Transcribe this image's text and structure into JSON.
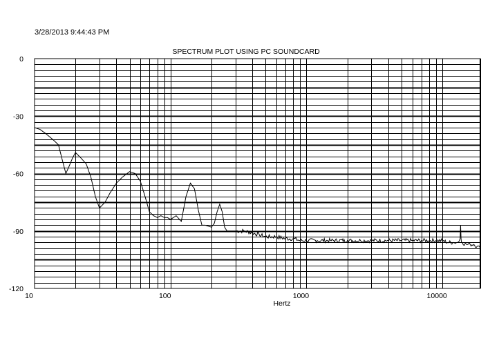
{
  "header": {
    "timestamp": "3/28/2013 9:44:43 PM"
  },
  "chart_data": {
    "type": "line",
    "title": "SPECTRUM PLOT USING PC SOUNDCARD",
    "xlabel": "Hertz",
    "ylabel": "",
    "x_scale": "log",
    "xlim": [
      10,
      19000
    ],
    "ylim": [
      -120,
      0
    ],
    "x_ticks": [
      {
        "value": 10,
        "label": "10"
      },
      {
        "value": 100,
        "label": "100"
      },
      {
        "value": 1000,
        "label": "1000"
      },
      {
        "value": 10000,
        "label": "10000"
      }
    ],
    "y_ticks": [
      {
        "value": 0,
        "label": "0"
      },
      {
        "value": -30,
        "label": "-30"
      },
      {
        "value": -60,
        "label": "-60"
      },
      {
        "value": -90,
        "label": "-90"
      },
      {
        "value": -120,
        "label": "-120"
      }
    ],
    "grid": true,
    "series": [
      {
        "color": "#000000",
        "x": [
          10,
          11,
          12,
          13,
          14,
          15,
          16,
          17,
          18,
          19,
          20,
          22,
          24,
          26,
          28,
          30,
          33,
          36,
          40,
          44,
          50,
          55,
          60,
          65,
          70,
          75,
          80,
          85,
          90,
          95,
          100,
          110,
          120,
          130,
          140,
          150,
          160,
          170,
          180,
          200,
          210,
          220,
          230,
          240,
          250,
          260,
          280,
          300,
          350,
          400,
          450,
          500,
          600,
          700,
          800,
          900,
          1000,
          1200,
          1500,
          2000,
          2500,
          3000,
          4000,
          5000,
          6000,
          7000,
          8000,
          9000,
          10000,
          11000,
          12000,
          13000,
          13500,
          13600,
          13700,
          13800,
          14000,
          15000,
          16000,
          17000,
          18000,
          19000
        ],
        "y": [
          -36,
          -37,
          -39,
          -41,
          -43,
          -45,
          -53,
          -60,
          -56,
          -52,
          -49,
          -52,
          -55,
          -62,
          -72,
          -78,
          -75,
          -70,
          -65,
          -62,
          -59,
          -60,
          -64,
          -72,
          -80,
          -82,
          -83,
          -82,
          -83,
          -83,
          -84,
          -82,
          -85,
          -72,
          -65,
          -68,
          -79,
          -87,
          -87,
          -88,
          -86,
          -80,
          -76,
          -80,
          -88,
          -90,
          -90,
          -90,
          -90,
          -91,
          -92,
          -93,
          -93,
          -94,
          -94,
          -95,
          -95,
          -95,
          -95,
          -95,
          -95,
          -95,
          -95,
          -95,
          -95,
          -95,
          -95,
          -95,
          -95,
          -96,
          -96,
          -96,
          -94,
          -87,
          -94,
          -96,
          -96,
          -97,
          -97,
          -97,
          -98,
          -99
        ]
      }
    ]
  }
}
